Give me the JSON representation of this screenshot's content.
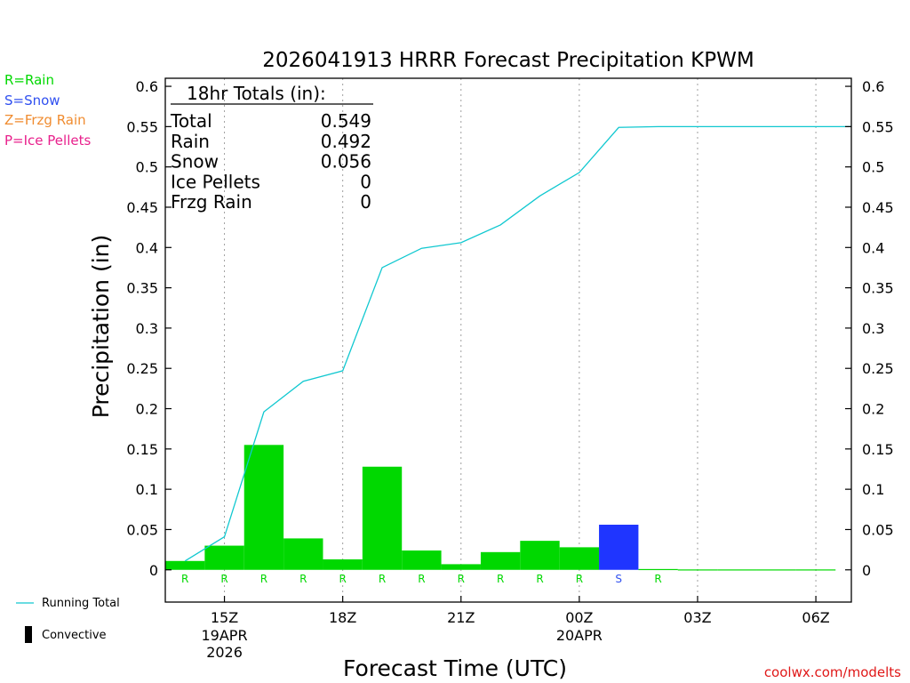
{
  "chart_data": {
    "type": "bar",
    "title": "2026041913 HRRR Forecast Precipitation KPWM",
    "xlabel": "Forecast Time (UTC)",
    "ylabel": "Precipitation (in)",
    "ylim": [
      -0.04,
      0.61
    ],
    "yticks": [
      0,
      0.05,
      0.1,
      0.15,
      0.2,
      0.25,
      0.3,
      0.35,
      0.4,
      0.45,
      0.5,
      0.55,
      0.6
    ],
    "ytick_labels": [
      "0",
      "0.05",
      "0.1",
      "0.15",
      "0.2",
      "0.25",
      "0.3",
      "0.35",
      "0.4",
      "0.45",
      "0.5",
      "0.55",
      "0.6"
    ],
    "xrange_hours": [
      13.5,
      30.9
    ],
    "xticks": [
      {
        "hour": 15,
        "label": "15Z",
        "sub": [
          "19APR",
          "2026"
        ]
      },
      {
        "hour": 18,
        "label": "18Z",
        "sub": []
      },
      {
        "hour": 21,
        "label": "21Z",
        "sub": []
      },
      {
        "hour": 24,
        "label": "00Z",
        "sub": [
          "20APR"
        ]
      },
      {
        "hour": 27,
        "label": "03Z",
        "sub": []
      },
      {
        "hour": 30,
        "label": "06Z",
        "sub": []
      }
    ],
    "hours": [
      14,
      15,
      16,
      17,
      18,
      19,
      20,
      21,
      22,
      23,
      24,
      25,
      26,
      27,
      28,
      29,
      30
    ],
    "values": [
      0.011,
      0.03,
      0.155,
      0.039,
      0.013,
      0.128,
      0.024,
      0.007,
      0.022,
      0.036,
      0.028,
      0.056,
      0.001,
      0.0005,
      0.0005,
      0.0005,
      0.0005
    ],
    "ptypes": [
      "R",
      "R",
      "R",
      "R",
      "R",
      "R",
      "R",
      "R",
      "R",
      "R",
      "R",
      "S",
      "R",
      "",
      "",
      "",
      ""
    ],
    "running_total": {
      "hours": [
        14,
        15,
        16,
        17,
        18,
        19,
        20,
        21,
        22,
        23,
        24,
        25,
        26,
        27,
        28,
        29,
        30,
        30.9
      ],
      "values": [
        0.011,
        0.041,
        0.196,
        0.234,
        0.247,
        0.375,
        0.399,
        0.406,
        0.428,
        0.464,
        0.493,
        0.549,
        0.55,
        0.55,
        0.55,
        0.55,
        0.55,
        0.55
      ]
    },
    "totals_box": {
      "title": "18hr Totals (in):",
      "rows": [
        {
          "label": "Total",
          "value": "0.549"
        },
        {
          "label": "Rain",
          "value": "0.492"
        },
        {
          "label": "Snow",
          "value": "0.056"
        },
        {
          "label": "Ice Pellets",
          "value": "0"
        },
        {
          "label": "Frzg Rain",
          "value": "0"
        }
      ]
    },
    "ptype_legend": [
      {
        "code": "R",
        "text": "R=Rain",
        "color": "#00d800"
      },
      {
        "code": "S",
        "text": "S=Snow",
        "color": "#3050f0"
      },
      {
        "code": "Z",
        "text": "Z=Frzg Rain",
        "color": "#f08c30"
      },
      {
        "code": "P",
        "text": "P=Ice Pellets",
        "color": "#e8208c"
      }
    ],
    "bar_colors": {
      "R": "#00d800",
      "S": "#1f35ff"
    },
    "line_color": "#10c8d0",
    "bottom_legend": {
      "running_total": "Running Total",
      "convective": "Convective"
    }
  },
  "credit": "coolwx.com/modelts"
}
